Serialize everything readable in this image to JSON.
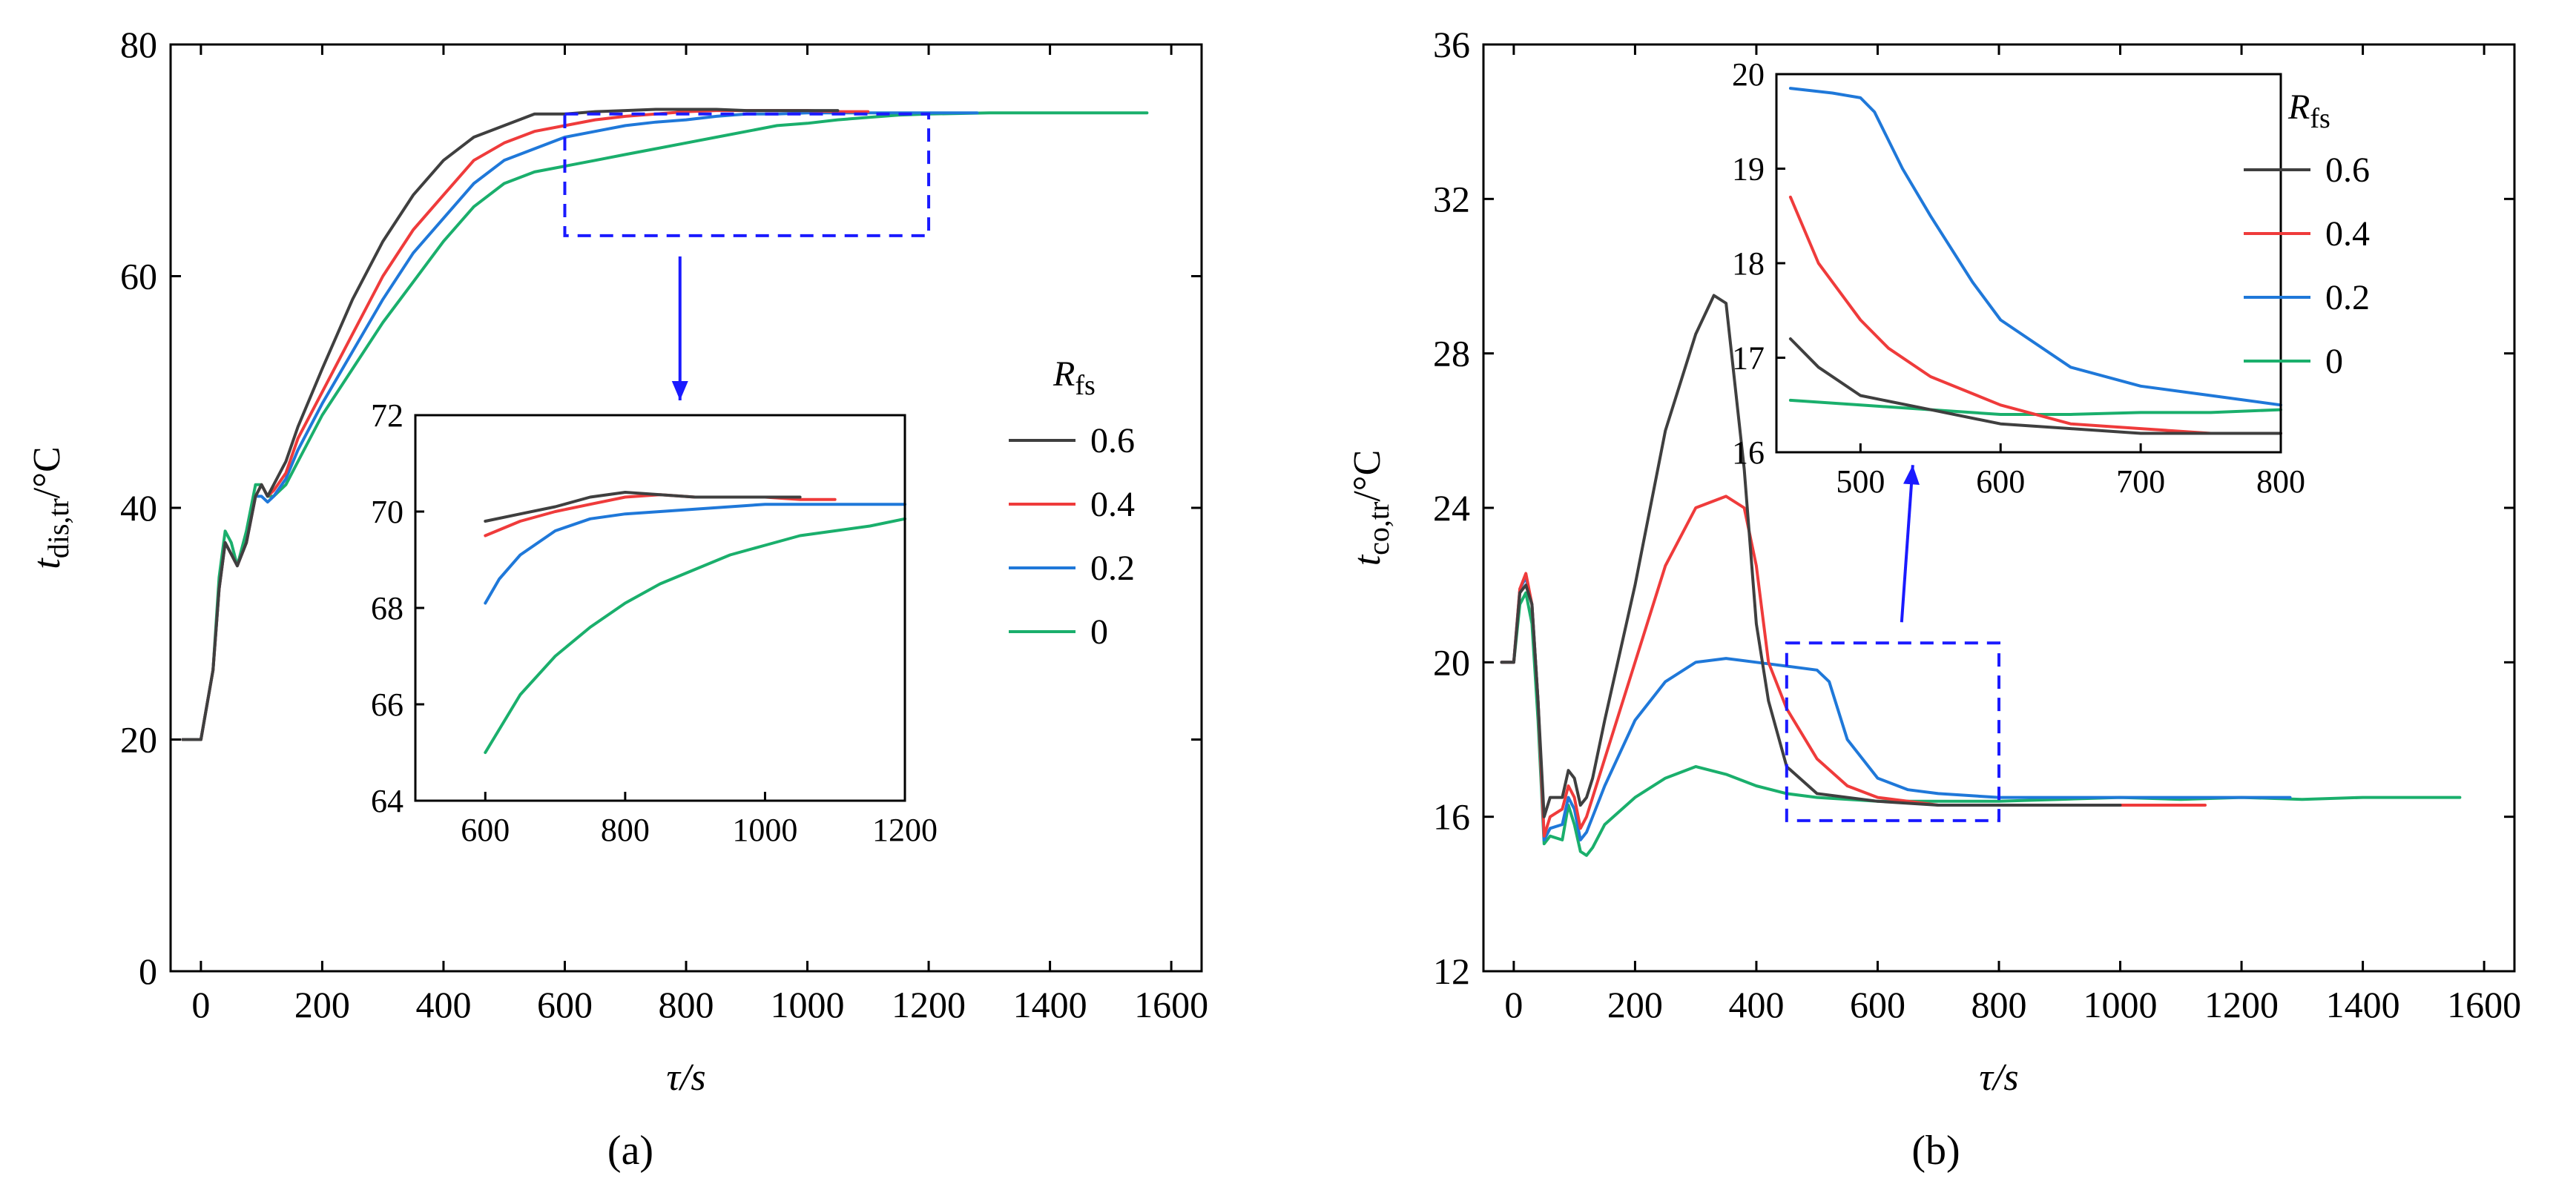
{
  "colors": {
    "0.6": "#3f3f3f",
    "0.4": "#ef3b3b",
    "0.2": "#1f78d9",
    "0": "#1aaf6c",
    "zoom": "#1a1aff",
    "axis": "#000000"
  },
  "chart_data": [
    {
      "id": "a",
      "type": "line",
      "panel_label": "(a)",
      "xlabel": "τ/s",
      "ylabel_main": "t",
      "ylabel_sub": "dis,tr",
      "ylabel_unit": "/°C",
      "xlim": [
        -50,
        1650
      ],
      "ylim": [
        0,
        80
      ],
      "xticks": [
        "0",
        "200",
        "400",
        "600",
        "800",
        "1000",
        "1200",
        "1400",
        "1600"
      ],
      "yticks": [
        "0",
        "20",
        "40",
        "60",
        "80"
      ],
      "legend_title_main": "R",
      "legend_title_sub": "fs",
      "legend": [
        "0.6",
        "0.4",
        "0.2",
        "0"
      ],
      "zoom_box": {
        "x": [
          600,
          1200
        ],
        "y": [
          63.5,
          74
        ]
      },
      "series": [
        {
          "name": "0.6",
          "x": [
            -30,
            0,
            20,
            30,
            40,
            50,
            60,
            75,
            90,
            100,
            110,
            120,
            140,
            160,
            200,
            250,
            300,
            350,
            400,
            450,
            500,
            550,
            600,
            650,
            700,
            750,
            800,
            850,
            900,
            950,
            1000,
            1050
          ],
          "y": [
            20,
            20,
            26,
            33,
            37,
            36,
            35,
            37,
            41,
            42,
            41,
            42,
            44,
            47,
            52,
            58,
            63,
            67,
            70,
            72,
            73,
            74,
            74,
            74.2,
            74.3,
            74.4,
            74.4,
            74.4,
            74.3,
            74.3,
            74.3,
            74.3
          ]
        },
        {
          "name": "0.4",
          "x": [
            -30,
            0,
            20,
            30,
            40,
            50,
            60,
            75,
            90,
            100,
            110,
            120,
            140,
            160,
            200,
            250,
            300,
            350,
            400,
            450,
            500,
            550,
            600,
            650,
            700,
            750,
            800,
            850,
            900,
            950,
            1000,
            1050,
            1100
          ],
          "y": [
            20,
            20,
            26,
            33,
            37,
            36,
            35,
            37,
            41,
            42,
            41,
            41.5,
            43,
            46,
            50,
            55,
            60,
            64,
            67,
            70,
            71.5,
            72.5,
            73,
            73.5,
            73.8,
            74,
            74.2,
            74.3,
            74.3,
            74.3,
            74.3,
            74.2,
            74.2
          ]
        },
        {
          "name": "0.2",
          "x": [
            -30,
            0,
            20,
            30,
            40,
            50,
            60,
            75,
            90,
            100,
            110,
            120,
            140,
            160,
            200,
            250,
            300,
            350,
            400,
            450,
            500,
            550,
            600,
            650,
            700,
            750,
            800,
            850,
            900,
            950,
            1000,
            1100,
            1200,
            1280
          ],
          "y": [
            20,
            20,
            26,
            33,
            37,
            36,
            35,
            37,
            41,
            41,
            40.5,
            41,
            42.5,
            45,
            49,
            53.5,
            58,
            62,
            65,
            68,
            70,
            71,
            72,
            72.5,
            73,
            73.3,
            73.5,
            73.8,
            74,
            74,
            74.1,
            74.1,
            74.1,
            74.1
          ]
        },
        {
          "name": "0",
          "x": [
            -30,
            0,
            20,
            30,
            40,
            50,
            60,
            75,
            90,
            100,
            110,
            120,
            140,
            160,
            200,
            250,
            300,
            350,
            400,
            450,
            500,
            550,
            600,
            650,
            700,
            750,
            800,
            850,
            900,
            950,
            1000,
            1050,
            1100,
            1150,
            1200,
            1300,
            1400,
            1500,
            1560
          ],
          "y": [
            20,
            20,
            26,
            34,
            38,
            37,
            35,
            38,
            42,
            42,
            41,
            41,
            42,
            44,
            48,
            52,
            56,
            59.5,
            63,
            66,
            68,
            69,
            69.5,
            70,
            70.5,
            71,
            71.5,
            72,
            72.5,
            73,
            73.2,
            73.5,
            73.7,
            73.9,
            74,
            74.1,
            74.1,
            74.1,
            74.1
          ]
        }
      ],
      "inset": {
        "xlim": [
          500,
          1200
        ],
        "ylim": [
          64,
          72
        ],
        "xticks": [
          "600",
          "800",
          "1000",
          "1200"
        ],
        "yticks": [
          "64",
          "66",
          "68",
          "70",
          "72"
        ],
        "series": [
          {
            "name": "0.6",
            "x": [
              600,
              650,
              700,
              750,
              800,
              850,
              900,
              950,
              1000,
              1050
            ],
            "y": [
              69.8,
              69.95,
              70.1,
              70.3,
              70.4,
              70.35,
              70.3,
              70.3,
              70.3,
              70.3
            ]
          },
          {
            "name": "0.4",
            "x": [
              600,
              650,
              700,
              750,
              800,
              850,
              900,
              950,
              1000,
              1050,
              1100
            ],
            "y": [
              69.5,
              69.8,
              70,
              70.15,
              70.3,
              70.35,
              70.3,
              70.3,
              70.3,
              70.25,
              70.25
            ]
          },
          {
            "name": "0.2",
            "x": [
              600,
              620,
              650,
              700,
              750,
              800,
              850,
              900,
              950,
              1000,
              1100,
              1200
            ],
            "y": [
              68.1,
              68.6,
              69.1,
              69.6,
              69.85,
              69.95,
              70,
              70.05,
              70.1,
              70.15,
              70.15,
              70.15
            ]
          },
          {
            "name": "0",
            "x": [
              600,
              650,
              700,
              750,
              800,
              850,
              900,
              950,
              1000,
              1050,
              1100,
              1150,
              1200
            ],
            "y": [
              65,
              66.2,
              67,
              67.6,
              68.1,
              68.5,
              68.8,
              69.1,
              69.3,
              69.5,
              69.6,
              69.7,
              69.85
            ]
          }
        ]
      }
    },
    {
      "id": "b",
      "type": "line",
      "panel_label": "(b)",
      "xlabel": "τ/s",
      "ylabel_main": "t",
      "ylabel_sub": "co,tr",
      "ylabel_unit": "/°C",
      "xlim": [
        -50,
        1650
      ],
      "ylim": [
        12,
        36
      ],
      "xticks": [
        "0",
        "200",
        "400",
        "600",
        "800",
        "1000",
        "1200",
        "1400",
        "1600"
      ],
      "yticks": [
        "12",
        "16",
        "20",
        "24",
        "28",
        "32",
        "36"
      ],
      "legend_title_main": "R",
      "legend_title_sub": "fs",
      "legend": [
        "0.6",
        "0.4",
        "0.2",
        "0"
      ],
      "zoom_box": {
        "x": [
          450,
          800
        ],
        "y": [
          15.9,
          20.5
        ]
      },
      "series": [
        {
          "name": "0.6",
          "x": [
            -20,
            0,
            10,
            20,
            30,
            40,
            50,
            60,
            80,
            90,
            100,
            110,
            120,
            130,
            150,
            200,
            250,
            300,
            330,
            350,
            380,
            400,
            420,
            450,
            500,
            600,
            700,
            800,
            900,
            1000
          ],
          "y": [
            20,
            20,
            21.8,
            22,
            21.5,
            19,
            16,
            16.5,
            16.5,
            17.2,
            17,
            16.3,
            16.5,
            17,
            18.5,
            22,
            26,
            28.5,
            29.5,
            29.3,
            25,
            21,
            19,
            17.3,
            16.6,
            16.4,
            16.3,
            16.3,
            16.3,
            16.3
          ]
        },
        {
          "name": "0.4",
          "x": [
            -20,
            0,
            10,
            20,
            30,
            40,
            50,
            60,
            80,
            90,
            100,
            110,
            120,
            130,
            150,
            200,
            250,
            300,
            350,
            380,
            400,
            420,
            450,
            500,
            550,
            600,
            700,
            800,
            900,
            1000,
            1100,
            1140
          ],
          "y": [
            20,
            20,
            21.9,
            22.3,
            21.5,
            19,
            15.5,
            16,
            16.2,
            16.8,
            16.5,
            15.7,
            16,
            16.5,
            17.5,
            20,
            22.5,
            24,
            24.3,
            24,
            22.5,
            20,
            18.8,
            17.5,
            16.8,
            16.5,
            16.3,
            16.3,
            16.3,
            16.3,
            16.3,
            16.3
          ]
        },
        {
          "name": "0.2",
          "x": [
            -20,
            0,
            10,
            20,
            30,
            40,
            50,
            60,
            80,
            90,
            100,
            110,
            120,
            130,
            150,
            200,
            250,
            300,
            350,
            400,
            450,
            500,
            520,
            550,
            600,
            650,
            700,
            800,
            900,
            1000,
            1100,
            1200,
            1280
          ],
          "y": [
            20,
            20,
            21.9,
            22.2,
            21.5,
            19,
            15.4,
            15.7,
            15.8,
            16.5,
            16.2,
            15.4,
            15.6,
            16,
            16.8,
            18.5,
            19.5,
            20,
            20.1,
            20,
            19.9,
            19.8,
            19.5,
            18,
            17,
            16.7,
            16.6,
            16.5,
            16.5,
            16.5,
            16.5,
            16.5,
            16.5
          ]
        },
        {
          "name": "0",
          "x": [
            -20,
            0,
            10,
            20,
            30,
            40,
            50,
            60,
            80,
            90,
            100,
            110,
            120,
            130,
            150,
            200,
            250,
            300,
            350,
            400,
            450,
            500,
            600,
            700,
            800,
            900,
            1000,
            1100,
            1200,
            1300,
            1400,
            1500,
            1560
          ],
          "y": [
            20,
            20,
            21.5,
            21.8,
            21,
            18.5,
            15.3,
            15.5,
            15.4,
            16.3,
            15.8,
            15.1,
            15,
            15.2,
            15.8,
            16.5,
            17,
            17.3,
            17.1,
            16.8,
            16.6,
            16.5,
            16.4,
            16.4,
            16.4,
            16.45,
            16.5,
            16.45,
            16.5,
            16.45,
            16.5,
            16.5,
            16.5
          ]
        }
      ],
      "inset": {
        "xlim": [
          440,
          800
        ],
        "ylim": [
          16,
          20
        ],
        "xticks": [
          "500",
          "600",
          "700",
          "800"
        ],
        "yticks": [
          "16",
          "17",
          "18",
          "19",
          "20"
        ],
        "series": [
          {
            "name": "0.6",
            "x": [
              450,
              470,
              500,
              550,
              600,
              650,
              700,
              750,
              800
            ],
            "y": [
              17.2,
              16.9,
              16.6,
              16.45,
              16.3,
              16.25,
              16.2,
              16.2,
              16.2
            ]
          },
          {
            "name": "0.4",
            "x": [
              450,
              470,
              500,
              520,
              550,
              600,
              650,
              700,
              750,
              800
            ],
            "y": [
              18.7,
              18,
              17.4,
              17.1,
              16.8,
              16.5,
              16.3,
              16.25,
              16.2,
              16.2
            ]
          },
          {
            "name": "0.2",
            "x": [
              450,
              480,
              500,
              510,
              530,
              550,
              580,
              600,
              650,
              700,
              750,
              800
            ],
            "y": [
              19.85,
              19.8,
              19.75,
              19.6,
              19,
              18.5,
              17.8,
              17.4,
              16.9,
              16.7,
              16.6,
              16.5
            ]
          },
          {
            "name": "0",
            "x": [
              450,
              500,
              550,
              600,
              650,
              700,
              750,
              800
            ],
            "y": [
              16.55,
              16.5,
              16.45,
              16.4,
              16.4,
              16.42,
              16.42,
              16.45
            ]
          }
        ]
      }
    }
  ]
}
